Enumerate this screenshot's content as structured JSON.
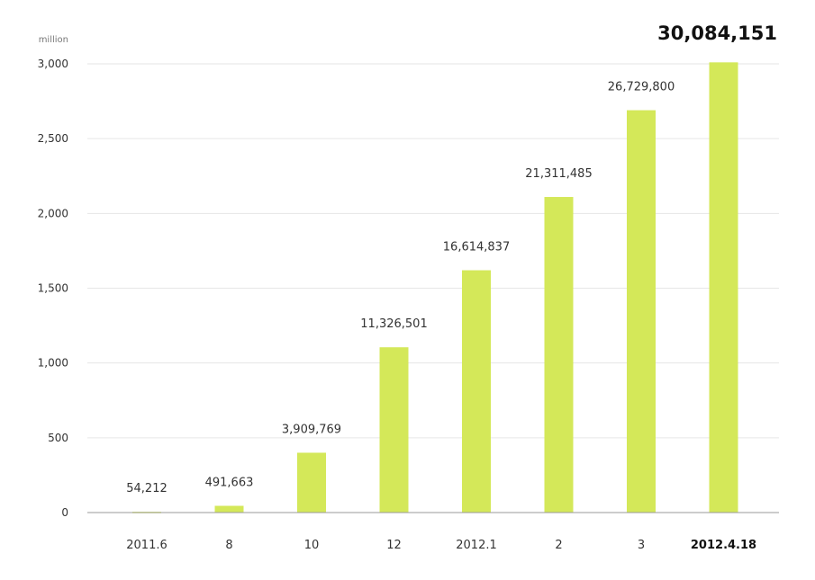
{
  "chart_data": {
    "type": "bar",
    "title": "",
    "xlabel": "",
    "ylabel": "",
    "unit": "million",
    "categories": [
      "2011.6",
      "8",
      "10",
      "12",
      "2012.1",
      "2",
      "3",
      "2012.4.18"
    ],
    "values": [
      54212,
      491663,
      3909769,
      11326501,
      16614837,
      21311485,
      26729800,
      30084151
    ],
    "value_labels": [
      "54,212",
      "491,663",
      "3,909,769",
      "11,326,501",
      "16,614,837",
      "21,311,485",
      "26,729,800",
      "30,084,151"
    ],
    "bar_heights_on_axis": [
      5,
      45,
      400,
      1105,
      1620,
      2110,
      2690,
      3010
    ],
    "ylim": [
      0,
      3000
    ],
    "yticks": [
      0,
      500,
      1000,
      1500,
      2000,
      2500,
      3000
    ],
    "ytick_labels": [
      "0",
      "500",
      "1,000",
      "1,500",
      "2,000",
      "2,500",
      "3,000"
    ],
    "grid": true,
    "legend": "none",
    "highlight_index": 7,
    "colors": {
      "bar": "#d4e859",
      "text": "#333333",
      "emphasis": "#111111"
    }
  }
}
